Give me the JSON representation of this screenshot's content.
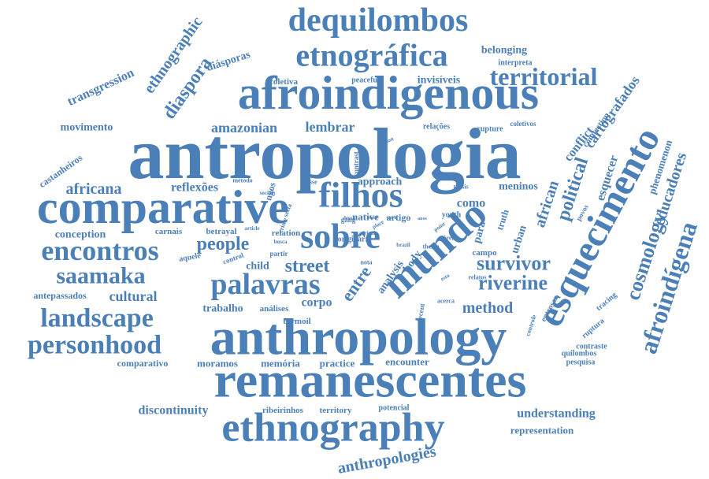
{
  "color": "#4b7fb7",
  "words": [
    {
      "text": "antropologia"
    },
    {
      "text": "anthropology"
    },
    {
      "text": "remanescentes"
    },
    {
      "text": "afroindigenous"
    },
    {
      "text": "comparative"
    },
    {
      "text": "ethnography"
    },
    {
      "text": "dequilombos"
    },
    {
      "text": "etnográfica"
    },
    {
      "text": "esquecimento"
    },
    {
      "text": "mundo"
    },
    {
      "text": "filhos"
    },
    {
      "text": "sobre"
    },
    {
      "text": "palavras"
    },
    {
      "text": "personhood"
    },
    {
      "text": "landscape"
    },
    {
      "text": "encontros"
    },
    {
      "text": "saamaka"
    },
    {
      "text": "territorial"
    },
    {
      "text": "afroindígena"
    },
    {
      "text": "cosmology"
    },
    {
      "text": "political"
    },
    {
      "text": "survivor"
    },
    {
      "text": "riverine"
    },
    {
      "text": "street"
    },
    {
      "text": "entre"
    },
    {
      "text": "people"
    },
    {
      "text": "africana"
    },
    {
      "text": "amazonian"
    },
    {
      "text": "lembrar"
    },
    {
      "text": "method"
    },
    {
      "text": "cultural"
    },
    {
      "text": "diaspora"
    },
    {
      "text": "ethnographic"
    },
    {
      "text": "transgression"
    },
    {
      "text": "movimento"
    },
    {
      "text": "diásporas"
    },
    {
      "text": "belonging"
    },
    {
      "text": "cartografados"
    },
    {
      "text": "conflict"
    },
    {
      "text": "african"
    },
    {
      "text": "esquecer"
    },
    {
      "text": "educadores"
    },
    {
      "text": "phenomenon"
    },
    {
      "text": "reflexões"
    },
    {
      "text": "approach"
    },
    {
      "text": "meninos"
    },
    {
      "text": "como"
    },
    {
      "text": "para"
    },
    {
      "text": "child"
    },
    {
      "text": "corpo"
    },
    {
      "text": "trabalho"
    },
    {
      "text": "conception"
    },
    {
      "text": "antepassados"
    },
    {
      "text": "comparativo"
    },
    {
      "text": "moramos"
    },
    {
      "text": "memória"
    },
    {
      "text": "practice"
    },
    {
      "text": "encounter"
    },
    {
      "text": "discontinuity"
    },
    {
      "text": "ribeirinhos"
    },
    {
      "text": "territory"
    },
    {
      "text": "potencial"
    },
    {
      "text": "understanding"
    },
    {
      "text": "representation"
    },
    {
      "text": "anthropologies"
    },
    {
      "text": "castanheiros"
    },
    {
      "text": "invisíveis"
    },
    {
      "text": "coletiva"
    },
    {
      "text": "interpreta"
    },
    {
      "text": "relações"
    },
    {
      "text": "rupture"
    },
    {
      "text": "coletivos"
    },
    {
      "text": "carnais"
    },
    {
      "text": "betrayal"
    },
    {
      "text": "relation"
    },
    {
      "text": "análises"
    },
    {
      "text": "turmoil"
    },
    {
      "text": "ruptura"
    },
    {
      "text": "contraste"
    },
    {
      "text": "quilombos"
    },
    {
      "text": "pesquisa"
    },
    {
      "text": "tracing"
    },
    {
      "text": "entrosar"
    },
    {
      "text": "analysis"
    },
    {
      "text": "body"
    },
    {
      "text": "urban"
    },
    {
      "text": "truth"
    },
    {
      "text": "campo"
    },
    {
      "text": "native"
    },
    {
      "text": "artigo"
    },
    {
      "text": "gang"
    },
    {
      "text": "peaceful"
    },
    {
      "text": "contrast"
    },
    {
      "text": "thesis"
    },
    {
      "text": "youth"
    },
    {
      "text": "método"
    },
    {
      "text": "ngos"
    },
    {
      "text": "esse"
    },
    {
      "text": "aquele"
    },
    {
      "text": "control"
    },
    {
      "text": "partir"
    },
    {
      "text": "nota"
    },
    {
      "text": "theme"
    },
    {
      "text": "área"
    },
    {
      "text": "relatos"
    },
    {
      "text": "acerca"
    },
    {
      "text": "recent"
    },
    {
      "text": "controle"
    },
    {
      "text": "connection"
    },
    {
      "text": "person"
    },
    {
      "text": "social"
    },
    {
      "text": "point"
    },
    {
      "text": "busca"
    },
    {
      "text": "article"
    },
    {
      "text": "crime"
    },
    {
      "text": "sexta"
    },
    {
      "text": "dessa"
    },
    {
      "text": "scott"
    },
    {
      "text": "work"
    },
    {
      "text": "anos"
    },
    {
      "text": "place"
    },
    {
      "text": "arrival"
    },
    {
      "text": "brazil"
    },
    {
      "text": "esta"
    },
    {
      "text": "povos"
    },
    {
      "text": "originária"
    }
  ]
}
